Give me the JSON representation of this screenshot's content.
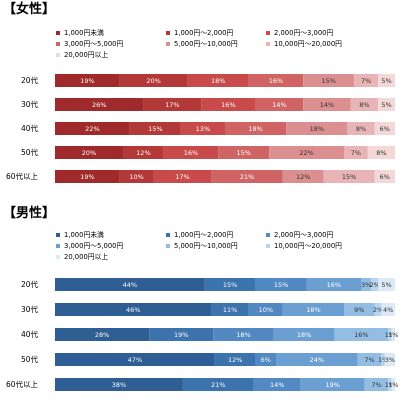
{
  "chart_data": [
    {
      "type": "bar",
      "title": "【女性】",
      "categories": [
        "20代",
        "30代",
        "40代",
        "50代",
        "60代以上"
      ],
      "series": [
        {
          "name": "1,000円未満",
          "color": "#a02a2b",
          "values": [
            19,
            26,
            22,
            20,
            19
          ]
        },
        {
          "name": "1,000円～2,000円",
          "color": "#b33838",
          "values": [
            20,
            17,
            15,
            12,
            10
          ]
        },
        {
          "name": "2,000円～3,000円",
          "color": "#c94a4a",
          "values": [
            18,
            16,
            13,
            16,
            17
          ]
        },
        {
          "name": "3,000円～5,000円",
          "color": "#d06464",
          "values": [
            16,
            14,
            18,
            15,
            21
          ]
        },
        {
          "name": "5,000円～10,000円",
          "color": "#dc8f90",
          "values": [
            15,
            14,
            18,
            22,
            12
          ]
        },
        {
          "name": "10,000円～20,000円",
          "color": "#e8b4b5",
          "values": [
            7,
            8,
            8,
            7,
            15
          ]
        },
        {
          "name": "20,000円以上",
          "color": "#f3d8d8",
          "values": [
            5,
            5,
            6,
            8,
            6
          ]
        }
      ]
    },
    {
      "type": "bar",
      "title": "【男性】",
      "categories": [
        "20代",
        "30代",
        "40代",
        "50代",
        "60代以上"
      ],
      "series": [
        {
          "name": "1,000円未満",
          "color": "#2e5e93",
          "values": [
            44,
            46,
            28,
            47,
            38
          ]
        },
        {
          "name": "1,000円～2,000円",
          "color": "#3c73ad",
          "values": [
            15,
            11,
            19,
            12,
            21
          ]
        },
        {
          "name": "2,000円～3,000円",
          "color": "#5289c3",
          "values": [
            15,
            10,
            18,
            6,
            14
          ]
        },
        {
          "name": "3,000円～5,000円",
          "color": "#6b9fd2",
          "values": [
            16,
            18,
            18,
            24,
            19
          ]
        },
        {
          "name": "5,000円～10,000円",
          "color": "#93bde3",
          "values": [
            3,
            9,
            16,
            7,
            7
          ]
        },
        {
          "name": "10,000円～20,000円",
          "color": "#b9d5ee",
          "values": [
            2,
            2,
            1,
            1,
            1
          ]
        },
        {
          "name": "20,000円以上",
          "color": "#dce9f6",
          "values": [
            5,
            4,
            1,
            3,
            1
          ]
        }
      ]
    }
  ]
}
